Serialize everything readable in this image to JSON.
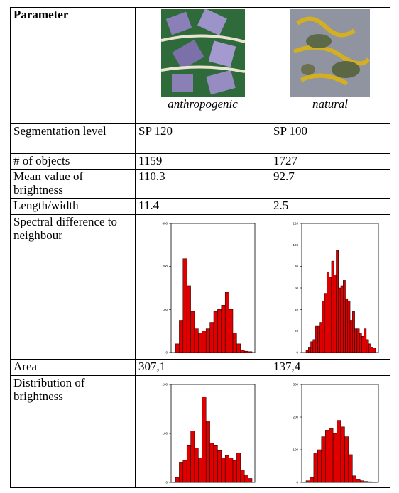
{
  "table": {
    "header": [
      "Parameter",
      "anthropogenic",
      "natural"
    ],
    "rows": [
      [
        "Segmentation level",
        "SP 120",
        "SP 100"
      ],
      [
        "# of objects",
        "1159",
        "1727"
      ],
      [
        "Mean  value of brightness",
        "110.3",
        "92.7"
      ],
      [
        "Length/width",
        "11.4",
        "2.5"
      ],
      [
        "Spectral difference to neighbour"
      ],
      [
        "Area",
        "307,1",
        "137,4"
      ],
      [
        "Distribution of brightness"
      ]
    ]
  },
  "histograms": [
    {
      "type": "bar",
      "color": "#e00000",
      "ylim": [
        0,
        300
      ],
      "yticks": [
        0,
        100,
        200,
        300
      ],
      "values": [
        20,
        75,
        218,
        155,
        95,
        55,
        45,
        50,
        55,
        70,
        95,
        100,
        110,
        140,
        100,
        45,
        20,
        5,
        3,
        2
      ]
    },
    {
      "type": "bar",
      "color": "#e00000",
      "ylim": [
        0,
        120
      ],
      "yticks": [
        0,
        20,
        40,
        60,
        80,
        100,
        120
      ],
      "values": [
        2,
        5,
        10,
        12,
        25,
        25,
        28,
        48,
        55,
        75,
        70,
        85,
        72,
        95,
        60,
        62,
        67,
        50,
        48,
        30,
        38,
        22,
        22,
        18,
        15,
        22,
        12,
        8,
        5,
        4
      ]
    },
    {
      "type": "bar",
      "color": "#e00000",
      "ylim": [
        0,
        200
      ],
      "yticks": [
        0,
        100,
        200
      ],
      "values": [
        10,
        40,
        45,
        75,
        105,
        70,
        50,
        175,
        125,
        80,
        75,
        65,
        50,
        55,
        50,
        45,
        60,
        25,
        15,
        8
      ]
    },
    {
      "type": "bar",
      "color": "#e00000",
      "ylim": [
        0,
        300
      ],
      "yticks": [
        0,
        100,
        200,
        300
      ],
      "values": [
        5,
        15,
        90,
        100,
        140,
        160,
        165,
        150,
        190,
        170,
        140,
        85,
        20,
        10,
        5,
        3,
        2,
        1
      ]
    }
  ]
}
